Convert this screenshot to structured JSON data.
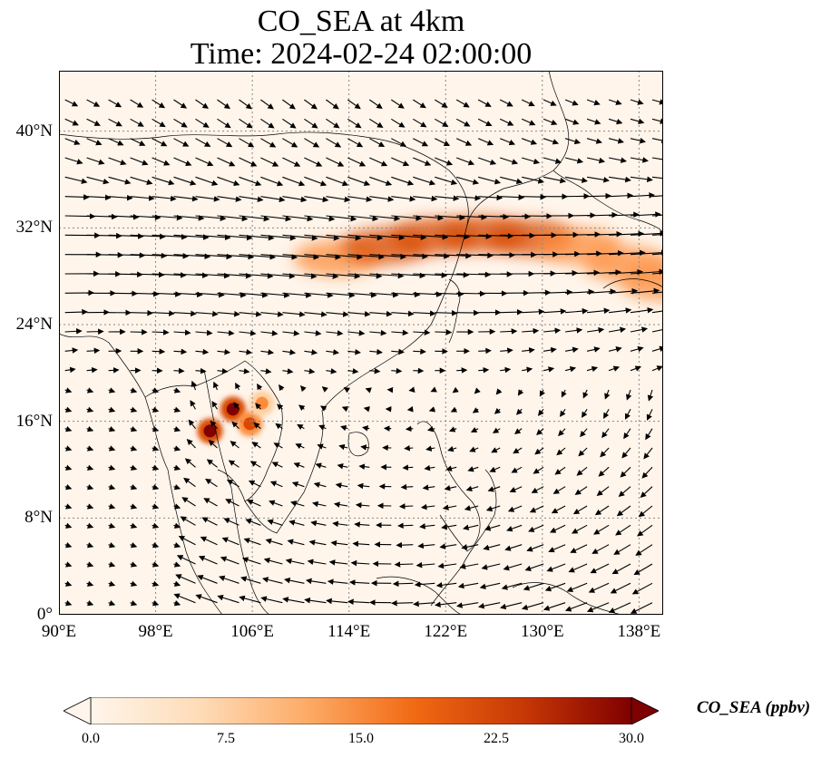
{
  "title": {
    "line1": "CO_SEA at 4km",
    "line2": "Time: 2024-02-24 02:00:00"
  },
  "map": {
    "extent": {
      "lon_min": 90,
      "lon_max": 140,
      "lat_min": 0,
      "lat_max": 45
    },
    "lat_ticks": [
      {
        "value": 0,
        "label": "0°"
      },
      {
        "value": 8,
        "label": "8°N"
      },
      {
        "value": 16,
        "label": "16°N"
      },
      {
        "value": 24,
        "label": "24°N"
      },
      {
        "value": 32,
        "label": "32°N"
      },
      {
        "value": 40,
        "label": "40°N"
      }
    ],
    "lon_ticks": [
      {
        "value": 90,
        "label": "90°E"
      },
      {
        "value": 98,
        "label": "98°E"
      },
      {
        "value": 106,
        "label": "106°E"
      },
      {
        "value": 114,
        "label": "114°E"
      },
      {
        "value": 122,
        "label": "122°E"
      },
      {
        "value": 130,
        "label": "130°E"
      },
      {
        "value": 138,
        "label": "138°E"
      }
    ],
    "gridlines": true,
    "background_color": "#fff5eb",
    "hotspots": [
      {
        "lon": 104.4,
        "lat": 17.0,
        "value": 30
      },
      {
        "lon": 102.5,
        "lat": 15.2,
        "value": 27
      },
      {
        "lon": 105.8,
        "lat": 15.8,
        "value": 20
      },
      {
        "lon": 106.8,
        "lat": 17.5,
        "value": 14
      }
    ],
    "plume_band": [
      {
        "lon": 113,
        "lat": 29.5,
        "value": 14
      },
      {
        "lon": 117,
        "lat": 30.5,
        "value": 16
      },
      {
        "lon": 121,
        "lat": 31.3,
        "value": 17
      },
      {
        "lon": 125,
        "lat": 31.5,
        "value": 16
      },
      {
        "lon": 129,
        "lat": 31.2,
        "value": 15
      },
      {
        "lon": 133,
        "lat": 30.5,
        "value": 14
      },
      {
        "lon": 137,
        "lat": 29.0,
        "value": 12
      },
      {
        "lon": 140,
        "lat": 27.5,
        "value": 10
      }
    ]
  },
  "colorbar": {
    "label": "CO_SEA (ppbv)",
    "min": 0,
    "max": 30,
    "ticks": [
      {
        "value": 0,
        "label": "0.0"
      },
      {
        "value": 7.5,
        "label": "7.5"
      },
      {
        "value": 15,
        "label": "15.0"
      },
      {
        "value": 22.5,
        "label": "22.5"
      },
      {
        "value": 30,
        "label": "30.0"
      }
    ],
    "colors": [
      "#fff5eb",
      "#fdd0a2",
      "#fd8d3c",
      "#d94801",
      "#8c1a04",
      "#7f0000"
    ]
  }
}
